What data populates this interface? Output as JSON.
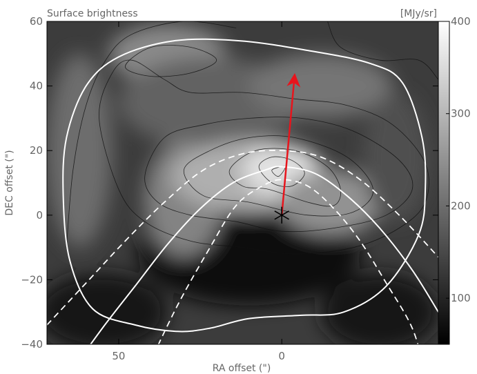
{
  "chart_data": {
    "type": "heatmap",
    "title": "Surface brightness",
    "unit_label": "[MJy/sr]",
    "xlabel": "RA offset (\")",
    "ylabel": "DEC offset (\")",
    "x_range": [
      72,
      -48
    ],
    "y_range": [
      -40,
      60
    ],
    "x_ticks": [
      {
        "value": 50,
        "label": "50"
      },
      {
        "value": 0,
        "label": "0"
      }
    ],
    "y_ticks": [
      {
        "value": -40,
        "label": "−40"
      },
      {
        "value": -20,
        "label": "−20"
      },
      {
        "value": 0,
        "label": "0"
      },
      {
        "value": 20,
        "label": "20"
      },
      {
        "value": 40,
        "label": "40"
      },
      {
        "value": 60,
        "label": "60"
      }
    ],
    "colorbar": {
      "range": [
        50,
        400
      ],
      "ticks": [
        {
          "value": 100,
          "label": "100"
        },
        {
          "value": 200,
          "label": "200"
        },
        {
          "value": 300,
          "label": "300"
        },
        {
          "value": 400,
          "label": "400"
        }
      ],
      "colors": [
        "#000000",
        "#ffffff"
      ]
    },
    "star": {
      "x": 0,
      "y": 0
    },
    "arrow": {
      "from": [
        0,
        0
      ],
      "to": [
        -4,
        44
      ],
      "color": "#e8141c"
    },
    "aperture_outline": [
      [
        67,
        6
      ],
      [
        66,
        24
      ],
      [
        60,
        40
      ],
      [
        50,
        49
      ],
      [
        33,
        54
      ],
      [
        13,
        54
      ],
      [
        -8,
        51
      ],
      [
        -27,
        47
      ],
      [
        -37,
        41
      ],
      [
        -43,
        24
      ],
      [
        -44,
        8
      ],
      [
        -42,
        -6
      ],
      [
        -32,
        -22
      ],
      [
        -19,
        -30
      ],
      [
        -6,
        -31
      ],
      [
        10,
        -32
      ],
      [
        22,
        -35
      ],
      [
        32,
        -36
      ],
      [
        45,
        -34
      ],
      [
        58,
        -29
      ],
      [
        65,
        -14
      ]
    ],
    "parabola_outer": [
      [
        65,
        -49
      ],
      [
        55,
        -35
      ],
      [
        45,
        -22
      ],
      [
        35,
        -9
      ],
      [
        25,
        2
      ],
      [
        15,
        10
      ],
      [
        5,
        14
      ],
      [
        0,
        15
      ],
      [
        -10,
        13
      ],
      [
        -20,
        6
      ],
      [
        -30,
        -4
      ],
      [
        -40,
        -17
      ],
      [
        -48,
        -30
      ]
    ],
    "parabola_outer_dashed": [
      [
        72,
        -34
      ],
      [
        60,
        -21
      ],
      [
        48,
        -8
      ],
      [
        36,
        4
      ],
      [
        24,
        14
      ],
      [
        12,
        19
      ],
      [
        0,
        20
      ],
      [
        -12,
        18
      ],
      [
        -24,
        11
      ],
      [
        -36,
        0
      ],
      [
        -48,
        -13
      ]
    ],
    "parabola_inner_dashed": [
      [
        42,
        -49
      ],
      [
        32,
        -28
      ],
      [
        22,
        -10
      ],
      [
        14,
        3
      ],
      [
        6,
        9
      ],
      [
        0,
        11
      ],
      [
        -8,
        9
      ],
      [
        -16,
        2
      ],
      [
        -24,
        -8
      ],
      [
        -32,
        -21
      ],
      [
        -40,
        -35
      ],
      [
        -44,
        -49
      ]
    ],
    "brightness_blobs": [
      {
        "x": 62,
        "y": 20,
        "rx": 10,
        "ry": 30,
        "value": 200
      },
      {
        "x": 35,
        "y": 50,
        "rx": 18,
        "ry": 9,
        "value": 240
      },
      {
        "x": 22,
        "y": 35,
        "rx": 28,
        "ry": 14,
        "value": 185
      },
      {
        "x": -12,
        "y": 40,
        "rx": 22,
        "ry": 10,
        "value": 210
      },
      {
        "x": 30,
        "y": 5,
        "rx": 12,
        "ry": 18,
        "value": 230
      },
      {
        "x": 10,
        "y": 12,
        "rx": 24,
        "ry": 11,
        "value": 290
      },
      {
        "x": 0,
        "y": 14,
        "rx": 12,
        "ry": 8,
        "value": 360
      },
      {
        "x": -15,
        "y": 4,
        "rx": 16,
        "ry": 10,
        "value": 250
      },
      {
        "x": -35,
        "y": 18,
        "rx": 10,
        "ry": 20,
        "value": 160
      }
    ],
    "dark_blobs": [
      {
        "x": 10,
        "y": -12,
        "rx": 34,
        "ry": 16,
        "value": 60
      },
      {
        "x": 55,
        "y": -30,
        "rx": 20,
        "ry": 12,
        "value": 80
      },
      {
        "x": -30,
        "y": -30,
        "rx": 18,
        "ry": 12,
        "value": 80
      }
    ],
    "contours": [
      {
        "points": [
          [
            3,
            14
          ],
          [
            1,
            12
          ],
          [
            -1,
            15
          ],
          [
            3,
            14
          ]
        ]
      },
      {
        "points": [
          [
            7,
            15
          ],
          [
            3,
            18
          ],
          [
            -3,
            17
          ],
          [
            -7,
            13
          ],
          [
            -3,
            9
          ],
          [
            3,
            10
          ],
          [
            7,
            15
          ]
        ]
      },
      {
        "points": [
          [
            16,
            14
          ],
          [
            8,
            20
          ],
          [
            -4,
            20
          ],
          [
            -14,
            15
          ],
          [
            -18,
            8
          ],
          [
            -16,
            3
          ],
          [
            -8,
            4
          ],
          [
            4,
            8
          ],
          [
            12,
            9
          ],
          [
            16,
            14
          ]
        ]
      },
      {
        "points": [
          [
            30,
            14
          ],
          [
            22,
            20
          ],
          [
            10,
            24
          ],
          [
            -4,
            24
          ],
          [
            -20,
            18
          ],
          [
            -28,
            8
          ],
          [
            -22,
            1
          ],
          [
            -8,
            0
          ],
          [
            10,
            4
          ],
          [
            24,
            6
          ],
          [
            30,
            14
          ]
        ]
      },
      {
        "points": [
          [
            42,
            12
          ],
          [
            36,
            24
          ],
          [
            24,
            28
          ],
          [
            10,
            30
          ],
          [
            -6,
            30
          ],
          [
            -22,
            26
          ],
          [
            -36,
            17
          ],
          [
            -40,
            8
          ],
          [
            -32,
            0
          ],
          [
            -16,
            -4
          ],
          [
            0,
            -5
          ],
          [
            14,
            -2
          ],
          [
            28,
            0
          ],
          [
            38,
            4
          ],
          [
            42,
            12
          ]
        ]
      },
      {
        "points": [
          [
            48,
            46
          ],
          [
            40,
            52
          ],
          [
            28,
            52
          ],
          [
            20,
            48
          ],
          [
            28,
            44
          ],
          [
            40,
            43
          ],
          [
            48,
            46
          ]
        ]
      },
      {
        "points": [
          [
            56,
            30
          ],
          [
            52,
            44
          ],
          [
            46,
            48
          ],
          [
            36,
            42
          ],
          [
            28,
            38
          ],
          [
            12,
            38
          ],
          [
            -4,
            36
          ],
          [
            -20,
            34
          ],
          [
            -34,
            28
          ],
          [
            -44,
            16
          ],
          [
            -44,
            4
          ],
          [
            -36,
            -4
          ],
          [
            -22,
            -10
          ],
          [
            -4,
            -12
          ],
          [
            12,
            -10
          ],
          [
            28,
            -8
          ],
          [
            42,
            -2
          ],
          [
            50,
            8
          ],
          [
            56,
            30
          ]
        ]
      },
      {
        "points": [
          [
            66,
            -10
          ],
          [
            64,
            14
          ],
          [
            60,
            34
          ],
          [
            54,
            48
          ],
          [
            46,
            56
          ],
          [
            30,
            60
          ],
          [
            14,
            58
          ]
        ]
      },
      {
        "points": [
          [
            -14,
            60
          ],
          [
            -18,
            52
          ],
          [
            -30,
            48
          ],
          [
            -42,
            48
          ],
          [
            -48,
            42
          ]
        ]
      }
    ]
  }
}
